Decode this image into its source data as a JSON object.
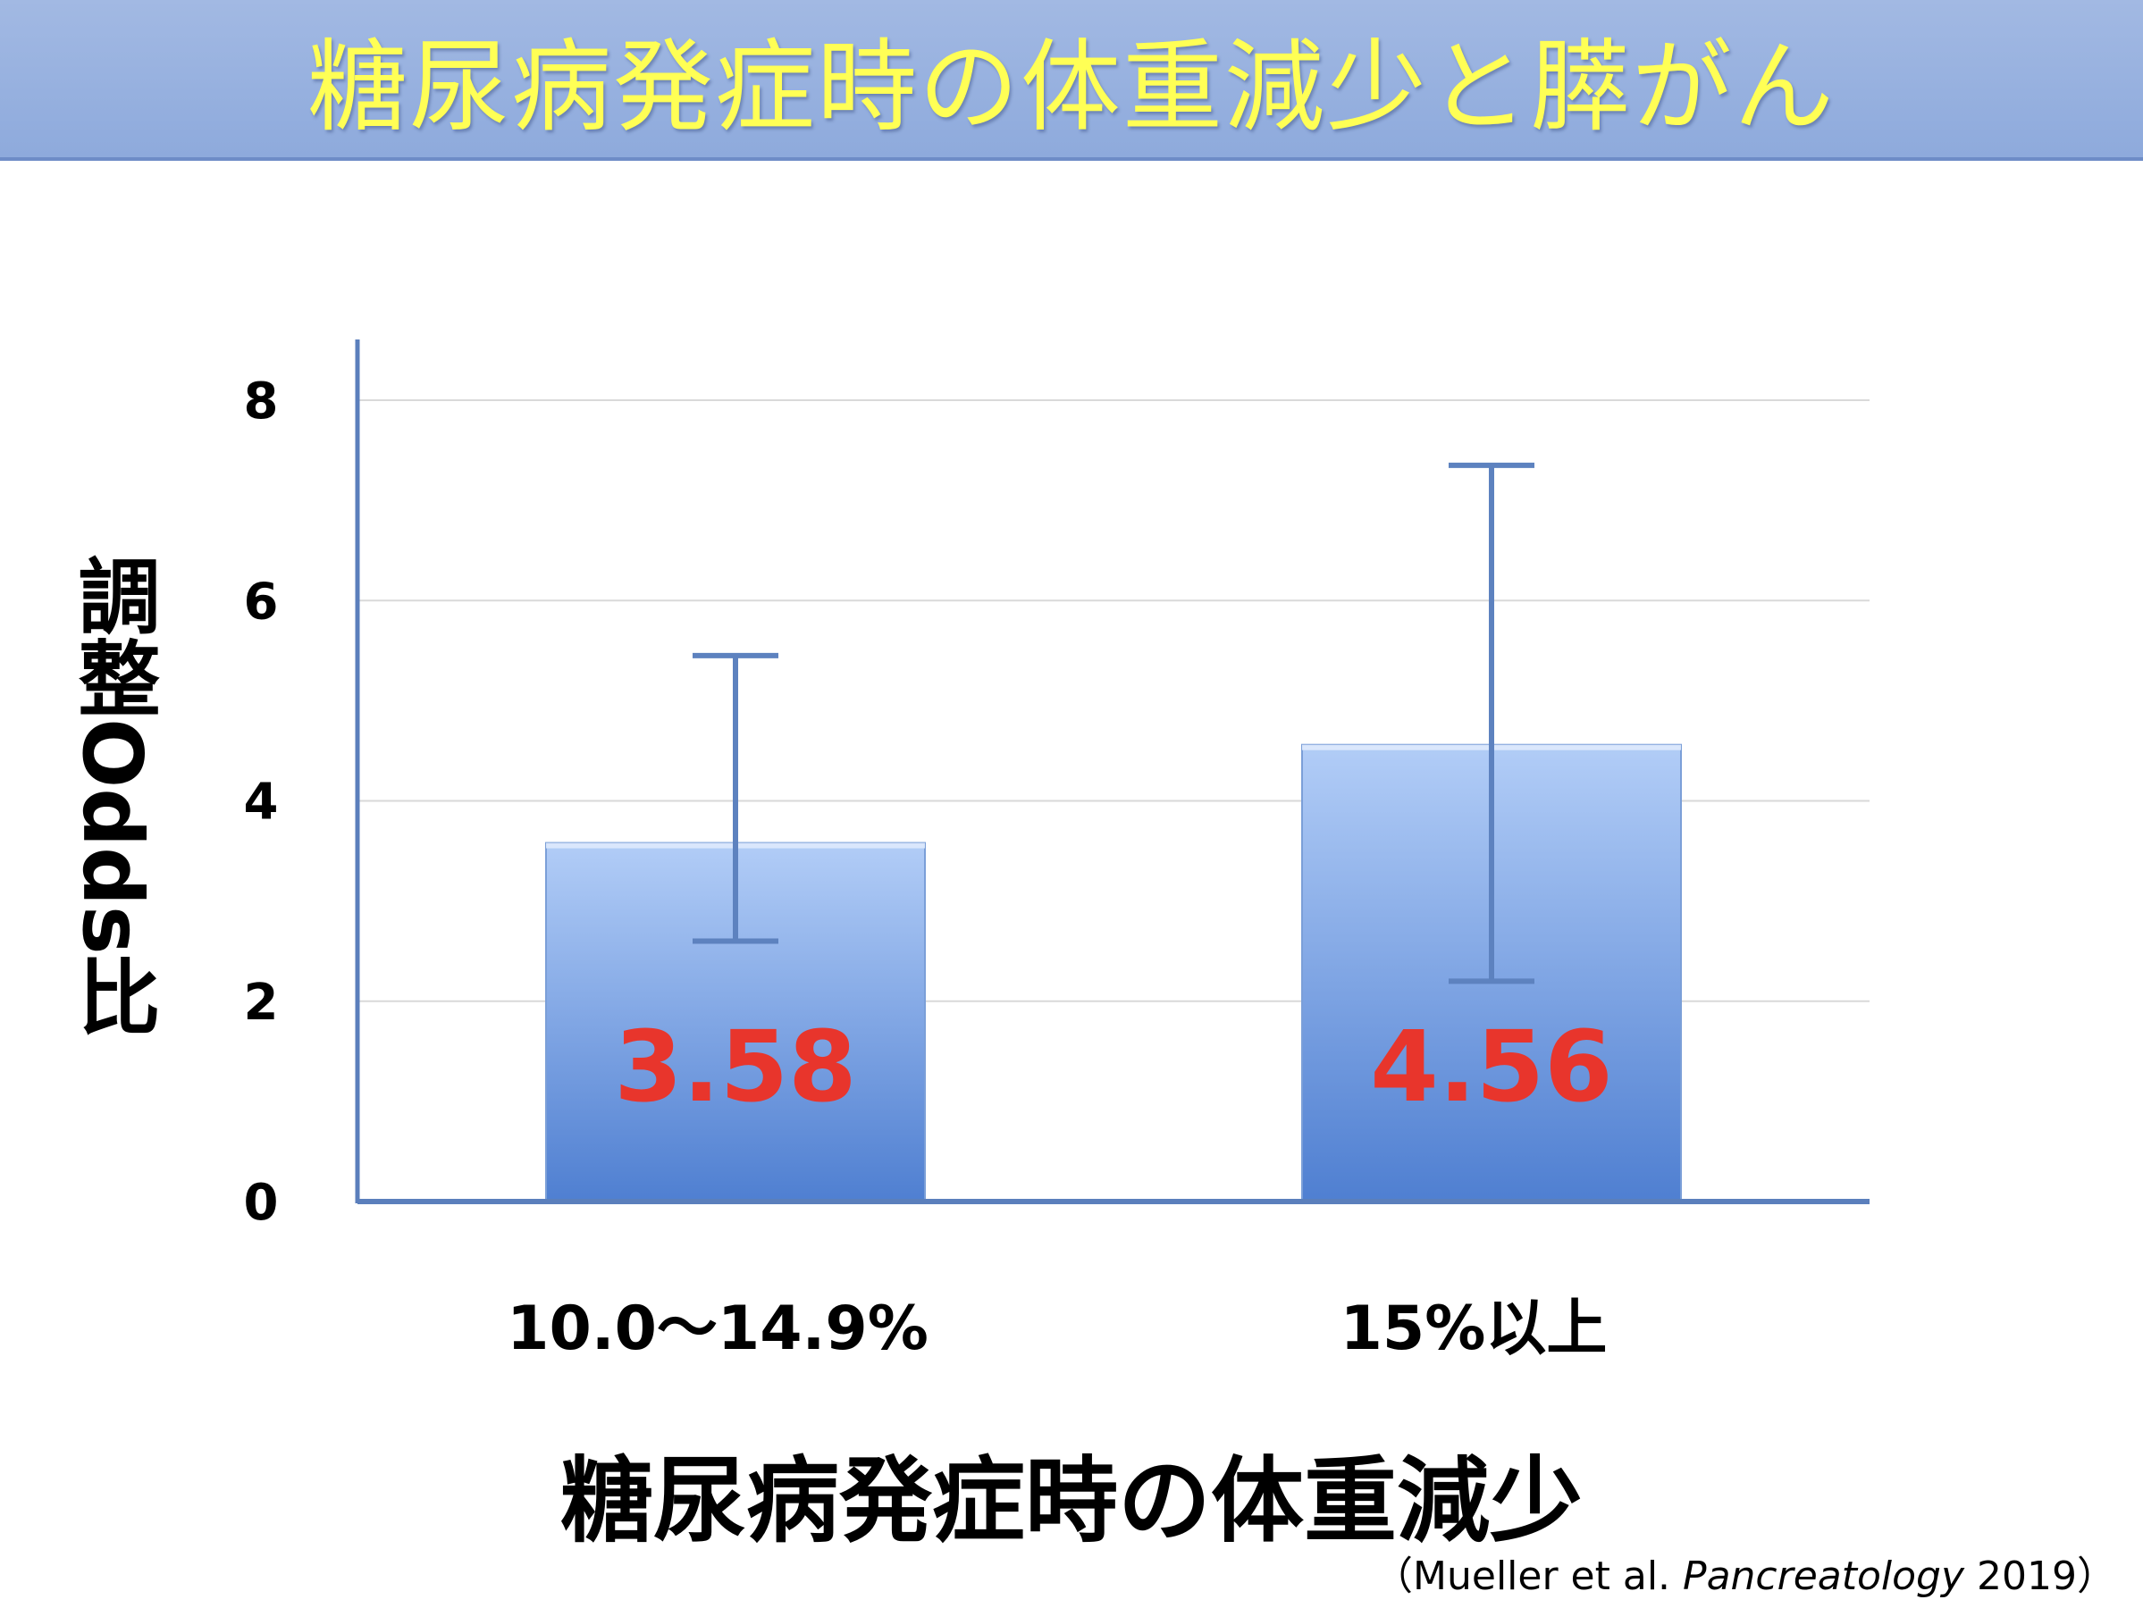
{
  "banner": {
    "title": "糖尿病発症時の体重減少と膵がん"
  },
  "citation": {
    "open": "（",
    "authors": "Mueller et al.",
    "journal": "Pancreatology",
    "year": "2019",
    "close": "）"
  },
  "colors": {
    "bar_top": "#b2cdf7",
    "bar_bottom": "#4f7fd1",
    "axis": "#5b7fbc",
    "error_bar": "#5d82bf",
    "value_label": "#e8352c",
    "banner_text": "#ffff55",
    "banner_bg": "#98b1e0"
  },
  "chart_data": {
    "type": "bar",
    "title": "",
    "xlabel": "糖尿病発症時の体重減少",
    "ylabel": "調整Odds比",
    "ylabel_parts": {
      "kanji": "調整",
      "rotated": "Odds比"
    },
    "categories": [
      "10.0～14.9%",
      "15%以上"
    ],
    "values": [
      3.58,
      4.56
    ],
    "value_labels": [
      "3.58",
      "4.56"
    ],
    "error_low": [
      2.6,
      2.2
    ],
    "error_high": [
      5.45,
      7.35
    ],
    "ylim": [
      0,
      8
    ],
    "yticks": [
      "0",
      "2",
      "4",
      "6",
      "8"
    ],
    "grid": true,
    "legend": "none"
  }
}
